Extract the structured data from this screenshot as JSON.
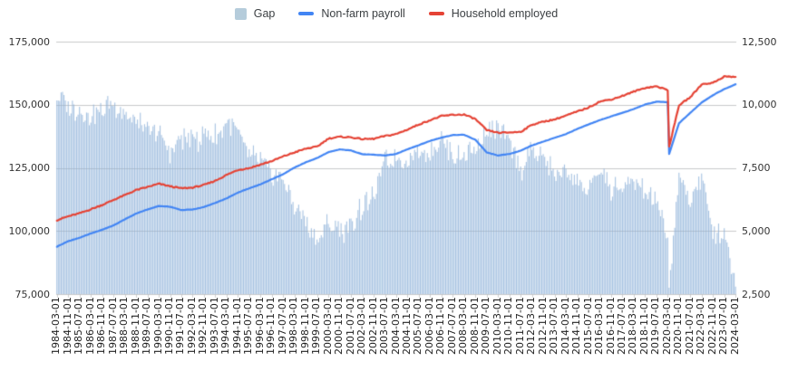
{
  "legend": {
    "items": [
      {
        "label": "Gap",
        "swatch": "square",
        "color": "#b5ccdb"
      },
      {
        "label": "Non-farm payroll",
        "swatch": "line",
        "color": "#4285f4"
      },
      {
        "label": "Household employed",
        "swatch": "line",
        "color": "#e54335"
      }
    ],
    "position": "top center"
  },
  "chart_data": {
    "type": "combo",
    "title": "",
    "legend_position": "top center",
    "grid": "horizontal only",
    "x_label_step_months": 8,
    "x_labels": [
      "1984-03-01",
      "1984-11-01",
      "1985-07-01",
      "1986-03-01",
      "1986-11-01",
      "1987-07-01",
      "1988-03-01",
      "1988-11-01",
      "1989-07-01",
      "1990-03-01",
      "1990-11-01",
      "1991-07-01",
      "1992-03-01",
      "1992-11-01",
      "1993-07-01",
      "1994-03-01",
      "1994-11-01",
      "1995-07-01",
      "1996-03-01",
      "1996-11-01",
      "1997-07-01",
      "1998-03-01",
      "1998-11-01",
      "1999-07-01",
      "2000-03-01",
      "2000-11-01",
      "2001-07-01",
      "2002-03-01",
      "2002-11-01",
      "2003-07-01",
      "2004-03-01",
      "2004-11-01",
      "2005-07-01",
      "2006-03-01",
      "2006-11-01",
      "2007-07-01",
      "2008-03-01",
      "2008-11-01",
      "2009-07-01",
      "2010-03-01",
      "2010-11-01",
      "2011-07-01",
      "2012-03-01",
      "2012-11-01",
      "2013-07-01",
      "2014-03-01",
      "2014-11-01",
      "2015-07-01",
      "2016-03-01",
      "2016-11-01",
      "2017-07-01",
      "2018-03-01",
      "2018-11-01",
      "2019-07-01",
      "2020-03-01",
      "2020-11-01",
      "2021-07-01",
      "2022-03-01",
      "2022-11-01",
      "2023-07-01",
      "2024-03-01"
    ],
    "left_axis": {
      "min": 75000,
      "max": 175000,
      "ticks_top_to_bottom": [
        "175,000",
        "150,000",
        "125,000",
        "100,000",
        "75,000"
      ],
      "applies_to": [
        "Non-farm payroll",
        "Household employed"
      ]
    },
    "right_axis": {
      "min": 2500,
      "max": 12500,
      "ticks_top_to_bottom": [
        "12,500",
        "10,000",
        "7,500",
        "5,000",
        "2,500"
      ],
      "applies_to": [
        "Gap"
      ]
    },
    "series": [
      {
        "name": "Gap",
        "type": "bar",
        "axis": "right",
        "color": "#a7c3e2",
        "derived_as": "household_employed_minus_non_farm_payroll",
        "values": [
          10530,
          9860,
          9700,
          9600,
          9800,
          10100,
          9600,
          9300,
          8900,
          8800,
          8100,
          8600,
          8700,
          8700,
          8800,
          9300,
          9000,
          8000,
          7800,
          7200,
          7000,
          6000,
          5400,
          4500,
          5400,
          5000,
          5200,
          6000,
          6300,
          7700,
          7900,
          7800,
          8200,
          8200,
          8500,
          8000,
          8000,
          8200,
          8800,
          9000,
          8500,
          7500,
          8200,
          7900,
          7300,
          7300,
          6900,
          6700,
          7400,
          6700,
          6700,
          6900,
          6600,
          6100,
          4800,
          7100,
          6200,
          7200,
          4900,
          5000,
          2900
        ]
      },
      {
        "name": "Non-farm payroll",
        "type": "line",
        "axis": "left",
        "color": "#4285f4",
        "values": [
          93770,
          95940,
          97300,
          99000,
          100500,
          102200,
          104600,
          106900,
          108500,
          109900,
          109600,
          108300,
          108500,
          109500,
          111100,
          112900,
          115200,
          116900,
          118500,
          120500,
          122500,
          125100,
          127200,
          128900,
          131200,
          132300,
          131900,
          130400,
          130200,
          129900,
          130500,
          132400,
          134000,
          135700,
          137000,
          138000,
          138100,
          136100,
          131100,
          129900,
          130500,
          131800,
          133900,
          135400,
          136900,
          138400,
          140400,
          142200,
          143900,
          145400,
          146800,
          148300,
          150100,
          151200,
          151000,
          142700,
          146800,
          150900,
          153800,
          156200,
          158100
        ]
      },
      {
        "name": "Household employed",
        "type": "line",
        "axis": "left",
        "color": "#e54335",
        "values": [
          104300,
          105800,
          107000,
          108600,
          110300,
          112300,
          114200,
          116200,
          117400,
          118700,
          117700,
          116900,
          117200,
          118200,
          119900,
          122200,
          124200,
          124900,
          126300,
          127700,
          129500,
          131100,
          132600,
          133400,
          136600,
          137300,
          137100,
          136400,
          136500,
          137600,
          138400,
          140200,
          142200,
          143900,
          145500,
          146000,
          146100,
          144300,
          139900,
          138900,
          139000,
          139300,
          142100,
          143300,
          144200,
          145700,
          147300,
          148900,
          151300,
          152100,
          153500,
          155200,
          156700,
          157300,
          155800,
          149800,
          153000,
          158100,
          158700,
          161200,
          161000
        ]
      }
    ],
    "covid_dip": {
      "approx_date": "2020-04-01",
      "non_farm_payroll": 130500,
      "household_employed": 133400,
      "gap": 2900
    }
  }
}
